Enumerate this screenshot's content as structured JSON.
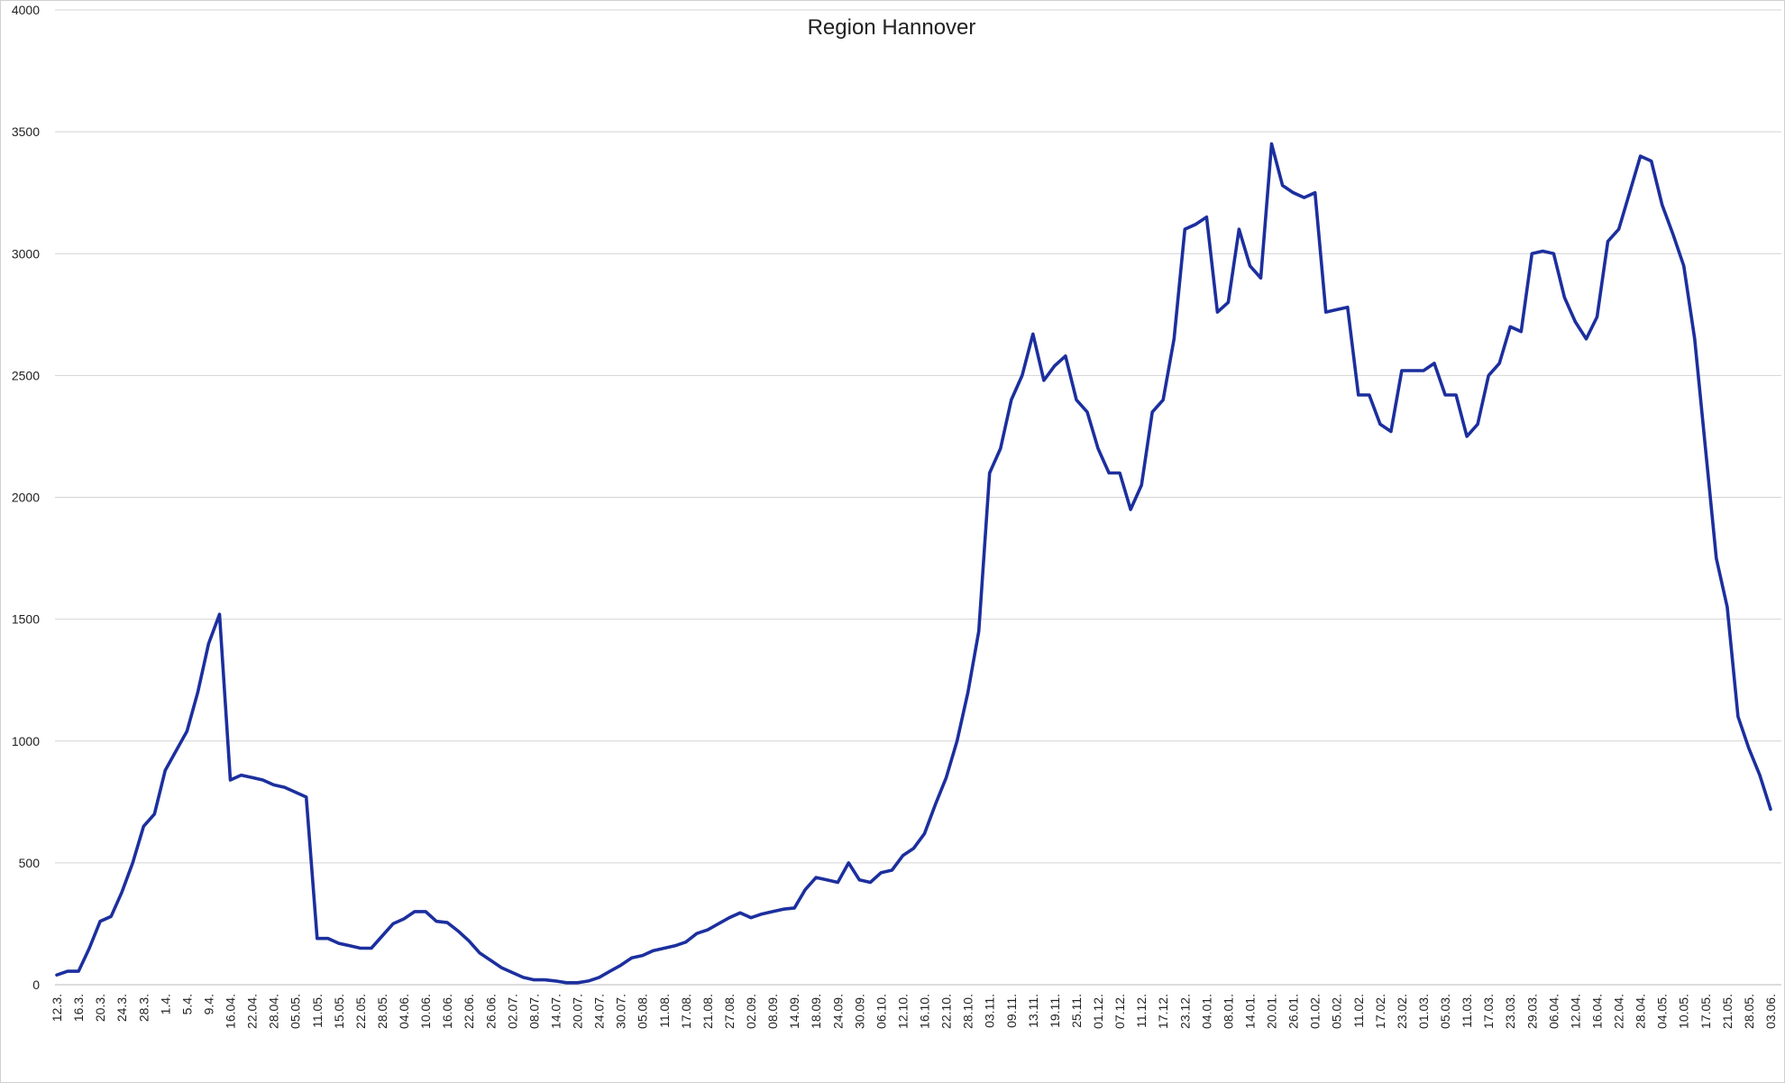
{
  "chart_data": {
    "type": "line",
    "title": "Region Hannover",
    "categories": [
      "12.3.",
      null,
      "16.3.",
      null,
      "20.3.",
      null,
      "24.3.",
      null,
      "28.3.",
      null,
      "1.4.",
      null,
      "5.4.",
      null,
      "9.4.",
      null,
      "16.04.",
      null,
      "22.04.",
      null,
      "28.04.",
      null,
      "05.05.",
      null,
      "11.05.",
      null,
      "15.05.",
      null,
      "22.05.",
      null,
      "28.05.",
      null,
      "04.06.",
      null,
      "10.06.",
      null,
      "16.06.",
      null,
      "22.06.",
      null,
      "26.06.",
      null,
      "02.07.",
      null,
      "08.07.",
      null,
      "14.07.",
      null,
      "20.07.",
      null,
      "24.07.",
      null,
      "30.07.",
      null,
      "05.08.",
      null,
      "11.08.",
      null,
      "17.08.",
      null,
      "21.08.",
      null,
      "27.08.",
      null,
      "02.09.",
      null,
      "08.09.",
      null,
      "14.09.",
      null,
      "18.09.",
      null,
      "24.09.",
      null,
      "30.09.",
      null,
      "06.10.",
      null,
      "12.10.",
      null,
      "16.10.",
      null,
      "22.10.",
      null,
      "28.10.",
      null,
      "03.11.",
      null,
      "09.11.",
      null,
      "13.11.",
      null,
      "19.11.",
      null,
      "25.11.",
      null,
      "01.12.",
      null,
      "07.12.",
      null,
      "11.12.",
      null,
      "17.12.",
      null,
      "23.12.",
      null,
      "04.01.",
      null,
      "08.01.",
      null,
      "14.01.",
      null,
      "20.01.",
      null,
      "26.01.",
      null,
      "01.02.",
      null,
      "05.02.",
      null,
      "11.02.",
      null,
      "17.02.",
      null,
      "23.02.",
      null,
      "01.03.",
      null,
      "05.03.",
      null,
      "11.03.",
      null,
      "17.03.",
      null,
      "23.03.",
      null,
      "29.03.",
      null,
      "06.04.",
      null,
      "12.04.",
      null,
      "16.04.",
      null,
      "22.04.",
      null,
      "28.04.",
      null,
      "04.05.",
      null,
      "10.05.",
      null,
      "17.05.",
      null,
      "21.05.",
      null,
      "28.05.",
      null,
      "03.06."
    ],
    "values": [
      40,
      55,
      55,
      150,
      260,
      280,
      380,
      500,
      650,
      700,
      880,
      960,
      1040,
      1200,
      1400,
      1520,
      840,
      860,
      850,
      840,
      820,
      810,
      790,
      770,
      190,
      190,
      170,
      160,
      150,
      150,
      200,
      250,
      270,
      300,
      300,
      260,
      255,
      220,
      180,
      130,
      100,
      70,
      50,
      30,
      20,
      20,
      15,
      8,
      8,
      15,
      30,
      55,
      80,
      110,
      120,
      140,
      150,
      160,
      175,
      210,
      225,
      250,
      275,
      295,
      275,
      290,
      300,
      310,
      315,
      390,
      440,
      430,
      420,
      500,
      430,
      420,
      460,
      470,
      530,
      560,
      620,
      740,
      850,
      1000,
      1200,
      1450,
      2100,
      2200,
      2400,
      2500,
      2670,
      2480,
      2540,
      2580,
      2400,
      2350,
      2200,
      2100,
      2100,
      1950,
      2050,
      2350,
      2400,
      2650,
      3100,
      3120,
      3150,
      2760,
      2800,
      3100,
      2950,
      2900,
      3450,
      3280,
      3250,
      3230,
      3250,
      2760,
      2770,
      2780,
      2420,
      2420,
      2300,
      2270,
      2520,
      2520,
      2520,
      2550,
      2420,
      2420,
      2250,
      2300,
      2500,
      2550,
      2700,
      2680,
      3000,
      3010,
      3000,
      2820,
      2720,
      2650,
      2740,
      3050,
      3100,
      3250,
      3400,
      3380,
      3200,
      3080,
      2950,
      2650,
      2200,
      1750,
      1550,
      1100,
      970,
      860,
      720
    ],
    "color": "#1c2f9e",
    "ylim": [
      0,
      4000
    ],
    "yticks": [
      0,
      500,
      1000,
      1500,
      2000,
      2500,
      3000,
      3500,
      4000
    ],
    "grid": true
  }
}
